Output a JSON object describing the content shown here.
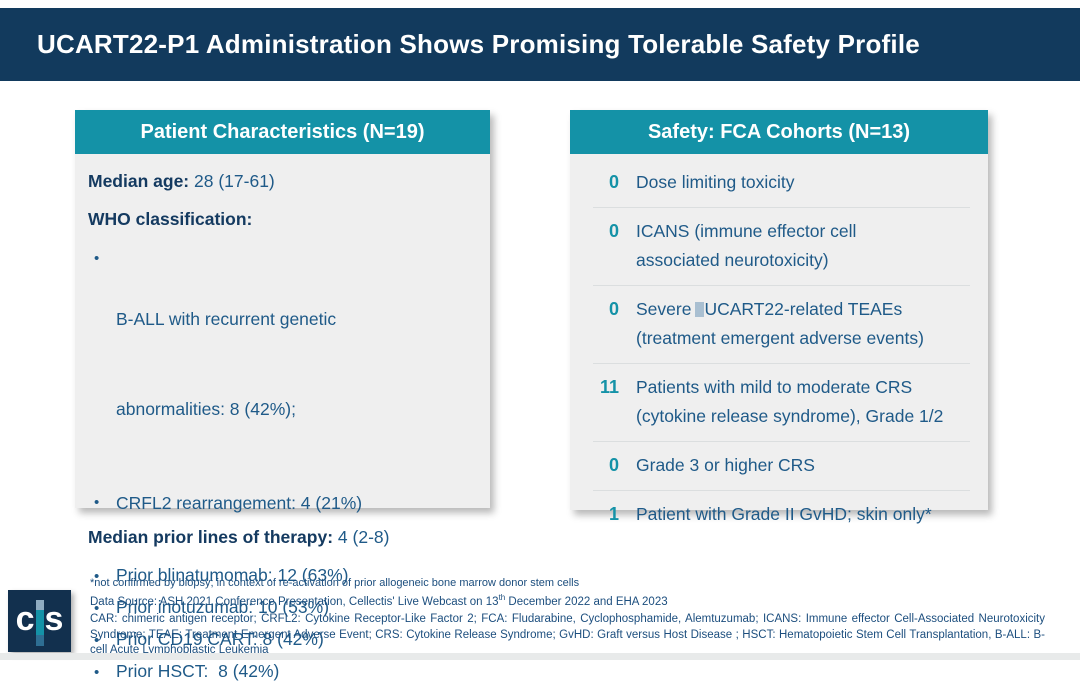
{
  "title": "UCART22-P1 Administration Shows Promising Tolerable Safety Profile",
  "colors": {
    "titlebar_bg": "#123A5D",
    "panel_header_bg": "#1492A7",
    "panel_body_bg": "#EFEFEF",
    "body_text": "#1F5A88",
    "bold_text": "#143A60",
    "accent_teal": "#1492A7",
    "footer_text": "#1C4E7E"
  },
  "patient_panel": {
    "header": "Patient Characteristics (N=19)",
    "median_age": {
      "label": "Median age:",
      "value": "28 (17-61)"
    },
    "who": {
      "label": "WHO classification:",
      "bullet1_line1": "B-ALL with recurrent genetic",
      "bullet1_line2": "abnormalities: 8 (42%);",
      "bullet2": "CRFL2 rearrangement: 4 (21%)"
    },
    "therapy": {
      "label": "Median prior lines of therapy:",
      "value": "4 (2-8)",
      "bullet1": "Prior blinatumomab: 12 (63%)",
      "bullet2": "Prior inotuzumab: 10 (53%)",
      "bullet3": "Prior CD19 CART: 8 (42%)",
      "bullet4": "Prior HSCT:  8 (42%)"
    }
  },
  "safety_panel": {
    "header": "Safety: FCA Cohorts (N=13)",
    "rows": [
      {
        "count": "0",
        "line1": "Dose limiting toxicity"
      },
      {
        "count": "0",
        "line1": "ICANS (immune effector cell",
        "line2": "associated neurotoxicity)"
      },
      {
        "count": "0",
        "line1_before": "Severe",
        "line1_after": "UCART22-related TEAEs",
        "line2": "(treatment emergent adverse events)"
      },
      {
        "count": "11",
        "line1": "Patients with mild to moderate CRS",
        "line2": "(cytokine release syndrome), Grade 1/2"
      },
      {
        "count": "0",
        "line1": "Grade 3 or higher CRS"
      },
      {
        "count": "1",
        "line1": "Patient with Grade II GvHD; skin only*"
      }
    ]
  },
  "footer": {
    "footnote": "*not confirmed by biopsy; in context of re-activation of prior allogeneic bone marrow donor stem cells",
    "data_source_before": "Data Source: ASH 2021 Conference Presentation, Cellectis' Live Webcast on 13",
    "data_source_sup": "th",
    "data_source_after": " December 2022 and EHA 2023",
    "abbreviations": "CAR: chimeric antigen receptor; CRFL2: Cytokine Receptor-Like Factor 2; FCA: Fludarabine, Cyclophosphamide, Alemtuzumab; ICANS: Immune effector Cell-Associated Neurotoxicity Syndrome; TEAE: Treatment Emergent Adverse Event; CRS: Cytokine Release Syndrome; GvHD: Graft versus Host Disease ; HSCT: Hematopoietic Stem Cell Transplantation, B-ALL: B-cell Acute Lymphoblastic Leukemia"
  },
  "logo": {
    "letter_left": "c",
    "letter_right": "s"
  }
}
